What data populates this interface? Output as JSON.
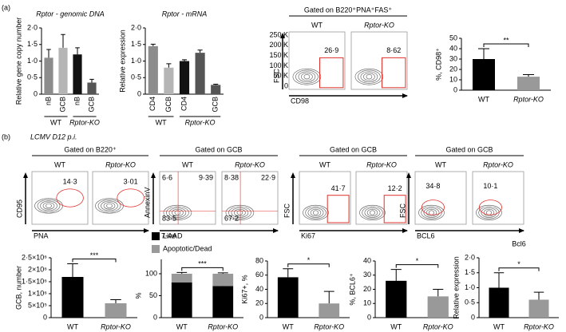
{
  "panels": {
    "a": "(a)",
    "b": "(b)"
  },
  "subtitle_b": "LCMV D12 p.i.",
  "flow_panels": [
    {
      "header": "Gated on B220⁺PNA⁺FAS⁺",
      "ylabel": "FSC",
      "xlabel": "CD98",
      "yticks": [
        "250 K",
        "200 K",
        "150 K",
        "100 K",
        "50 K",
        "0"
      ],
      "samples": [
        {
          "name": "WT",
          "gates": [
            "26·9"
          ]
        },
        {
          "name": "Rptor-KO",
          "gates": [
            "8·62"
          ]
        }
      ]
    },
    {
      "header": "Gated on B220⁺",
      "ylabel": "CD95",
      "xlabel": "PNA",
      "samples": [
        {
          "name": "WT",
          "gates": [
            "14·3"
          ]
        },
        {
          "name": "Rptor-KO",
          "gates": [
            "3·01"
          ]
        }
      ]
    },
    {
      "header": "Gated on GCB",
      "ylabel": "AnnexinV",
      "xlabel": "7-AAD",
      "samples": [
        {
          "name": "WT",
          "gates": [
            "6·6",
            "9·39",
            "83·5"
          ]
        },
        {
          "name": "Rptor-KO",
          "gates": [
            "8·38",
            "22·9",
            "67·2"
          ]
        }
      ]
    },
    {
      "header": "Gated on GCB",
      "ylabel": "FSC",
      "xlabel": "Ki67",
      "samples": [
        {
          "name": "WT",
          "gates": [
            "41·7"
          ]
        },
        {
          "name": "Rptor-KO",
          "gates": [
            "12·2"
          ]
        }
      ]
    },
    {
      "header": "Gated on GCB",
      "ylabel": "FSC",
      "xlabel": "BCL6",
      "samples": [
        {
          "name": "WT",
          "gates": [
            "34·8"
          ]
        },
        {
          "name": "Rptor-KO",
          "gates": [
            "10·1"
          ]
        }
      ]
    }
  ],
  "chart_data": [
    {
      "type": "bar",
      "title": "Rptor - genomic DNA",
      "ylabel": "Relative gene copy number",
      "categories": [
        "nB",
        "GCB",
        "nB",
        "GCB"
      ],
      "groups": [
        "WT",
        "Rptor-KO"
      ],
      "values": [
        1.1,
        1.4,
        1.2,
        0.35
      ],
      "errors": [
        0.25,
        0.4,
        0.2,
        0.1
      ],
      "colors": [
        "#8c8c8c",
        "#b5b5b5",
        "#111111",
        "#555555"
      ],
      "ylim": [
        0,
        2
      ],
      "yticks": [
        0,
        {
          "value": 0.5,
          "label": "0·5"
        },
        {
          "value": 1,
          "label": "1·0"
        },
        {
          "value": 1.5,
          "label": "1·5"
        },
        {
          "value": 2,
          "label": "2·0"
        }
      ]
    },
    {
      "type": "bar",
      "title": "Rptor - mRNA",
      "ylabel": "Relative expression",
      "categories": [
        "CD4",
        "GCB",
        "CD4",
        null,
        "GCB"
      ],
      "groups": [
        "WT",
        "Rptor-KO"
      ],
      "values": [
        1.45,
        0.8,
        1.0,
        1.25,
        0.28
      ],
      "errors": [
        0.06,
        0.12,
        0.04,
        0.08,
        0.02
      ],
      "colors": [
        "#8c8c8c",
        "#b5b5b5",
        "#111111",
        "#555555",
        "#555555"
      ],
      "ylim": [
        0,
        2
      ],
      "yticks": [
        0,
        {
          "value": 0.5,
          "label": "0·5"
        },
        {
          "value": 1,
          "label": "1·0"
        },
        {
          "value": 1.5,
          "label": "1·5"
        },
        {
          "value": 2,
          "label": "2·0"
        }
      ]
    },
    {
      "type": "bar",
      "ylabel": "%, CD98⁺",
      "categories": [
        "WT",
        "Rptor-KO"
      ],
      "values": [
        30,
        13
      ],
      "errors": [
        10,
        2
      ],
      "colors": [
        "#000000",
        "#999999"
      ],
      "annotation": "**",
      "ylim": [
        0,
        50
      ],
      "yticks": [
        0,
        10,
        20,
        30,
        40,
        50
      ]
    },
    {
      "type": "bar",
      "ylabel": "GCB, number",
      "categories": [
        "WT",
        "Rptor-KO"
      ],
      "values": [
        1700000,
        600000
      ],
      "errors": [
        550000,
        150000
      ],
      "colors": [
        "#000000",
        "#999999"
      ],
      "annotation": "***",
      "ylim": [
        0,
        2500000
      ],
      "yticks": [
        0,
        {
          "value": 500000,
          "label": "5×10⁵"
        },
        {
          "value": 1000000,
          "label": "1×10⁶"
        },
        {
          "value": 1500000,
          "label": "1·5×10⁶"
        },
        {
          "value": 2000000,
          "label": "2×10⁶"
        },
        {
          "value": 2500000,
          "label": "2·5×10⁶"
        }
      ]
    },
    {
      "type": "stacked_bar",
      "ylabel": "%",
      "categories": [
        "WT",
        "Rptor-KO"
      ],
      "annotation": "***",
      "series": [
        {
          "name": "Live",
          "color": "#000000",
          "values": [
            80,
            72
          ],
          "errors": [
            3,
            2
          ]
        },
        {
          "name": "Apoptotic/Dead",
          "color": "#999999",
          "values": [
            20,
            28
          ],
          "errors": [
            3,
            2
          ]
        }
      ],
      "ylim": [
        0,
        100
      ],
      "yticks": [
        0,
        50,
        100
      ]
    },
    {
      "type": "bar",
      "ylabel": "Ki67+, %",
      "categories": [
        "WT",
        "Rptor-KO"
      ],
      "values": [
        57,
        20
      ],
      "errors": [
        12,
        17
      ],
      "colors": [
        "#000000",
        "#999999"
      ],
      "annotation": "*",
      "ylim": [
        0,
        80
      ],
      "yticks": [
        0,
        20,
        40,
        60,
        80
      ]
    },
    {
      "type": "bar",
      "ylabel": "%, BCL6⁺",
      "categories": [
        "WT",
        "Rptor-KO"
      ],
      "values": [
        26,
        15
      ],
      "errors": [
        8,
        5
      ],
      "colors": [
        "#000000",
        "#999999"
      ],
      "annotation": "*",
      "ylim": [
        0,
        40
      ],
      "yticks": [
        0,
        10,
        20,
        30,
        40
      ]
    },
    {
      "type": "bar",
      "title": "Bcl6",
      "ylabel": "Relative expression",
      "categories": [
        "WT",
        "Rptor-KO"
      ],
      "values": [
        1.0,
        0.6
      ],
      "errors": [
        0.5,
        0.25
      ],
      "colors": [
        "#000000",
        "#999999"
      ],
      "annotation": "*",
      "ylim": [
        0,
        2
      ],
      "yticks": [
        0,
        {
          "value": 0.5,
          "label": "0·5"
        },
        {
          "value": 1,
          "label": "1·0"
        },
        {
          "value": 1.5,
          "label": "1·5"
        },
        {
          "value": 2,
          "label": "2·0"
        }
      ]
    }
  ]
}
